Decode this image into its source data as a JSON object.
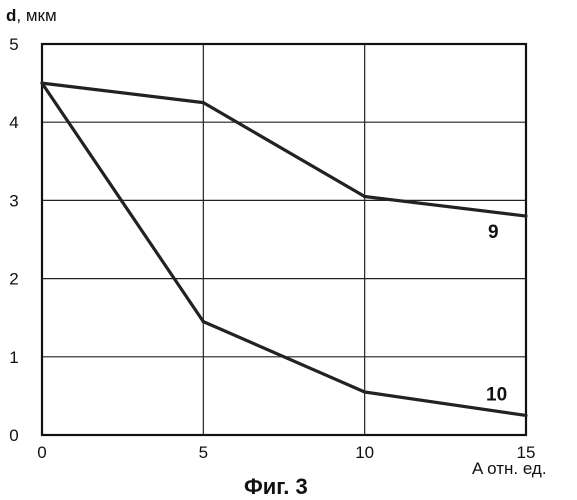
{
  "chart_data": {
    "type": "line",
    "ylabel_bold": "d",
    "ylabel_rest": ", мкм",
    "xlabel": "A отн. ед.",
    "caption": "Фиг. 3",
    "xlim": [
      0,
      15
    ],
    "ylim": [
      0,
      5
    ],
    "xticks": [
      0,
      5,
      10,
      15
    ],
    "yticks": [
      0,
      1,
      2,
      3,
      4,
      5
    ],
    "grid": true,
    "series": [
      {
        "label": "9",
        "x": [
          0,
          5,
          10,
          15
        ],
        "y": [
          4.5,
          4.25,
          3.05,
          2.8
        ]
      },
      {
        "label": "10",
        "x": [
          0,
          5,
          10,
          15
        ],
        "y": [
          4.5,
          1.45,
          0.55,
          0.25
        ]
      }
    ]
  }
}
